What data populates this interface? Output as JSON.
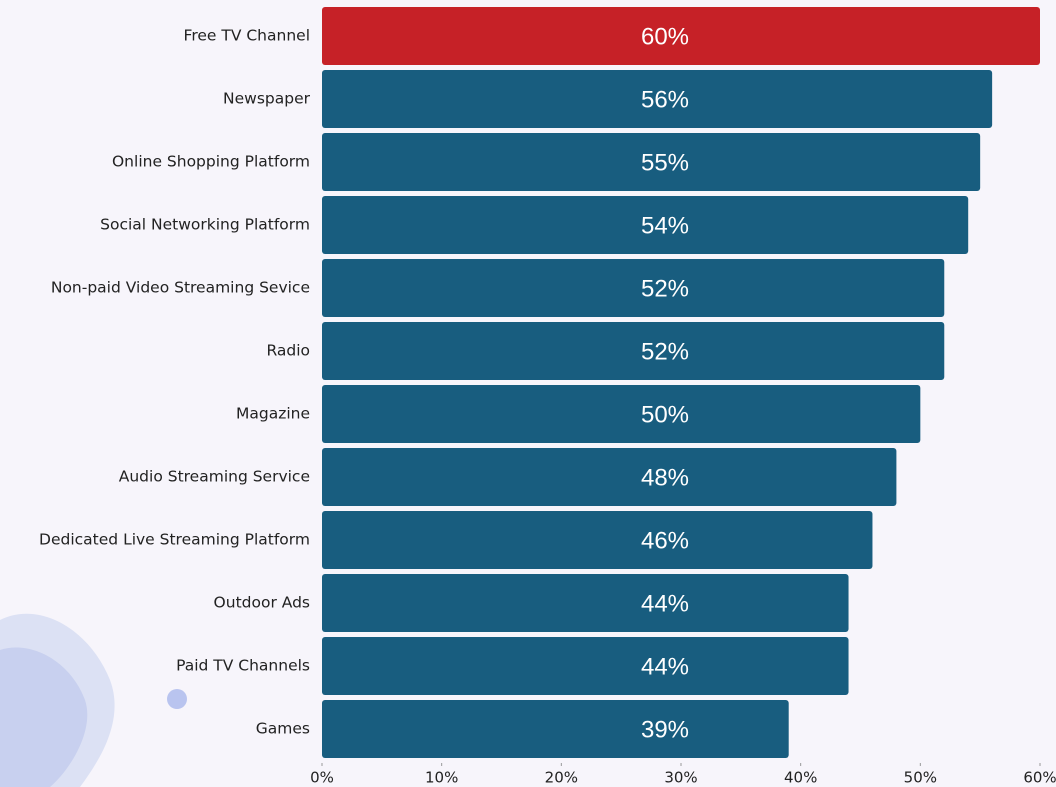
{
  "chart_data": {
    "type": "bar",
    "orientation": "horizontal",
    "categories": [
      "Free TV Channel",
      "Newspaper",
      "Online Shopping Platform",
      "Social Networking Platform",
      "Non-paid Video Streaming Sevice",
      "Radio",
      "Magazine",
      "Audio Streaming Service",
      "Dedicated Live Streaming Platform",
      "Outdoor Ads",
      "Paid TV Channels",
      "Games"
    ],
    "values": [
      60,
      56,
      55,
      54,
      52,
      52,
      50,
      48,
      46,
      44,
      44,
      39
    ],
    "value_labels": [
      "60%",
      "56%",
      "55%",
      "54%",
      "52%",
      "52%",
      "50%",
      "48%",
      "46%",
      "44%",
      "44%",
      "39%"
    ],
    "colors": [
      "#c62127",
      "#185d7f",
      "#185d7f",
      "#185d7f",
      "#185d7f",
      "#185d7f",
      "#185d7f",
      "#185d7f",
      "#185d7f",
      "#185d7f",
      "#185d7f",
      "#185d7f"
    ],
    "xlim": [
      0,
      60
    ],
    "xticks": [
      {
        "value": 0,
        "label": "0%"
      },
      {
        "value": 10,
        "label": "10%"
      },
      {
        "value": 20,
        "label": "20%"
      },
      {
        "value": 30,
        "label": "30%"
      },
      {
        "value": 40,
        "label": "40%"
      },
      {
        "value": 50,
        "label": "50%"
      },
      {
        "value": 60,
        "label": "60%"
      }
    ],
    "grid": false
  }
}
